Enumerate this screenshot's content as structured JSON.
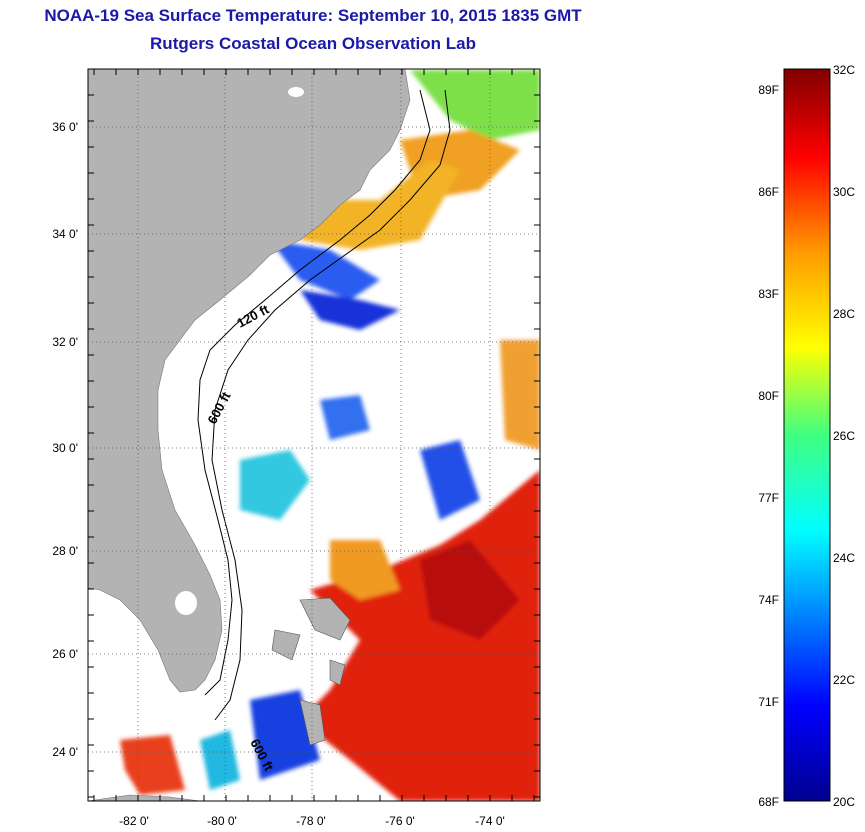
{
  "title": "NOAA-19 Sea Surface Temperature:  September 10, 2015 1835 GMT",
  "subtitle": "Rutgers Coastal Ocean Observation Lab",
  "map": {
    "lat_ticks": [
      "36 0'",
      "34 0'",
      "32 0'",
      "30 0'",
      "28 0'",
      "26 0'",
      "24 0'"
    ],
    "lon_ticks": [
      "-82 0'",
      "-80 0'",
      "-78 0'",
      "-76 0'",
      "-74 0'"
    ],
    "grid": "dotted",
    "isobath_labels": [
      "120 ft",
      "600 ft",
      "600 ft"
    ],
    "colors": {
      "land": "#b3b3b3",
      "ocean_nodata": "#ffffff",
      "warm_water": "#e0200f",
      "grid": "#555555"
    }
  },
  "colorbar": {
    "fahrenheit_labels": [
      "89F",
      "86F",
      "83F",
      "80F",
      "77F",
      "74F",
      "71F",
      "68F"
    ],
    "celsius_labels": [
      "32C",
      "30C",
      "28C",
      "26C",
      "24C",
      "22C",
      "20C"
    ],
    "min_c": 20,
    "max_c": 32
  }
}
